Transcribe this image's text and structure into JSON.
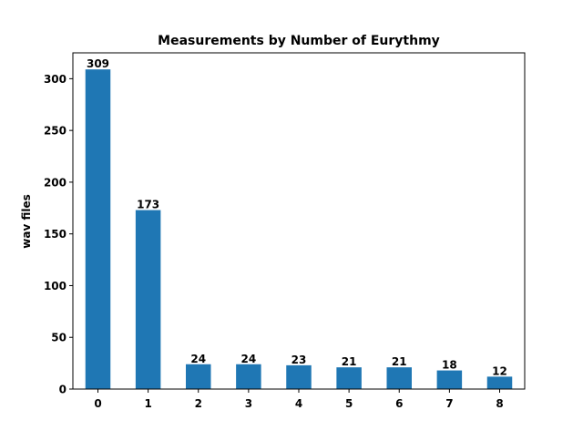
{
  "chart_data": {
    "type": "bar",
    "title": "Measurements by Number of Eurythmy",
    "xlabel": "",
    "ylabel": "wav files",
    "categories": [
      "0",
      "1",
      "2",
      "3",
      "4",
      "5",
      "6",
      "7",
      "8"
    ],
    "values": [
      309,
      173,
      24,
      24,
      23,
      21,
      21,
      18,
      12
    ],
    "data_labels": [
      "309",
      "173",
      "24",
      "24",
      "23",
      "21",
      "21",
      "18",
      "12"
    ],
    "ylim": [
      0,
      325
    ],
    "yticks": [
      0,
      50,
      100,
      150,
      200,
      250,
      300
    ],
    "ytick_labels": [
      "0",
      "50",
      "100",
      "150",
      "200",
      "250",
      "300"
    ],
    "grid": false,
    "legend": "none",
    "colors": {
      "bar": "#1f77b4",
      "axis": "#000000",
      "background": "#ffffff"
    }
  }
}
